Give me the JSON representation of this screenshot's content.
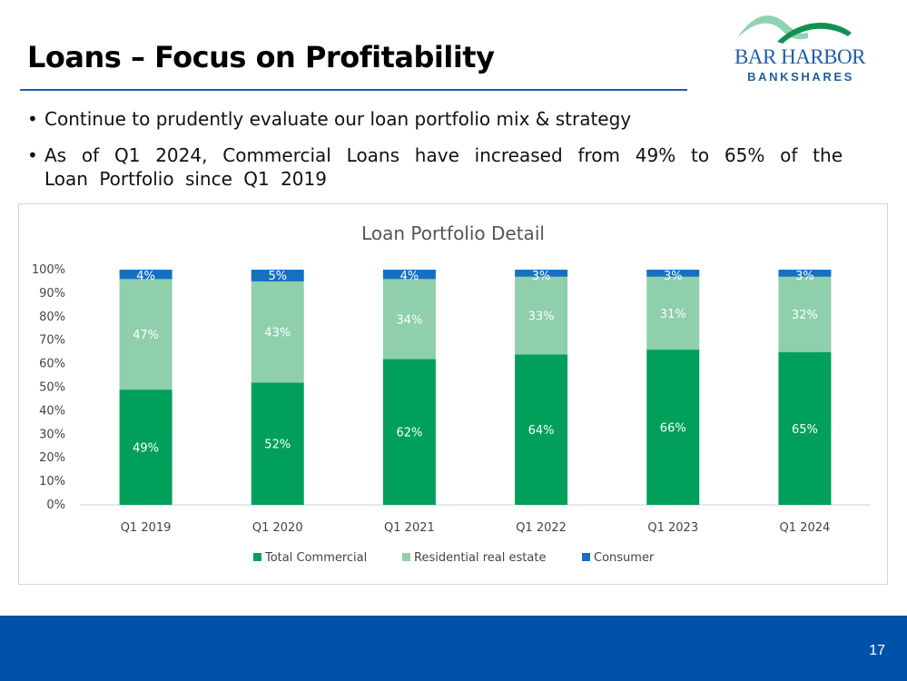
{
  "slide": {
    "title": "Loans – Focus on Profitability",
    "page_number": "17"
  },
  "logo": {
    "line1": "BAR HARBOR",
    "line2": "BANKSHARES"
  },
  "bullets": [
    "Continue to prudently evaluate our loan portfolio mix & strategy",
    "As of Q1 2024, Commercial Loans have increased from 49% to 65% of the Loan Portfolio since Q1 2019"
  ],
  "colors": {
    "commercial": "#00a05a",
    "residential": "#8fcfac",
    "consumer": "#1570c2",
    "footer": "#0051a8",
    "title_rule": "#1f5aa6"
  },
  "chart_data": {
    "type": "bar",
    "stacked": true,
    "title": "Loan Portfolio Detail",
    "categories": [
      "Q1 2019",
      "Q1 2020",
      "Q1 2021",
      "Q1 2022",
      "Q1 2023",
      "Q1 2024"
    ],
    "series": [
      {
        "name": "Total Commercial",
        "values": [
          49,
          52,
          62,
          64,
          66,
          65
        ],
        "labels": [
          "49%",
          "52%",
          "62%",
          "64%",
          "66%",
          "65%"
        ]
      },
      {
        "name": "Residential real estate",
        "values": [
          47,
          43,
          34,
          33,
          31,
          32
        ],
        "labels": [
          "47%",
          "43%",
          "34%",
          "33%",
          "31%",
          "32%"
        ]
      },
      {
        "name": "Consumer",
        "values": [
          4,
          5,
          4,
          3,
          3,
          3
        ],
        "labels": [
          "4%",
          "5%",
          "4%",
          "3%",
          "3%",
          "3%"
        ]
      }
    ],
    "yticks": [
      "0%",
      "10%",
      "20%",
      "30%",
      "40%",
      "50%",
      "60%",
      "70%",
      "80%",
      "90%",
      "100%"
    ],
    "ylim": [
      0,
      100
    ],
    "xlabel": "",
    "ylabel": "",
    "legend": "bottom"
  }
}
